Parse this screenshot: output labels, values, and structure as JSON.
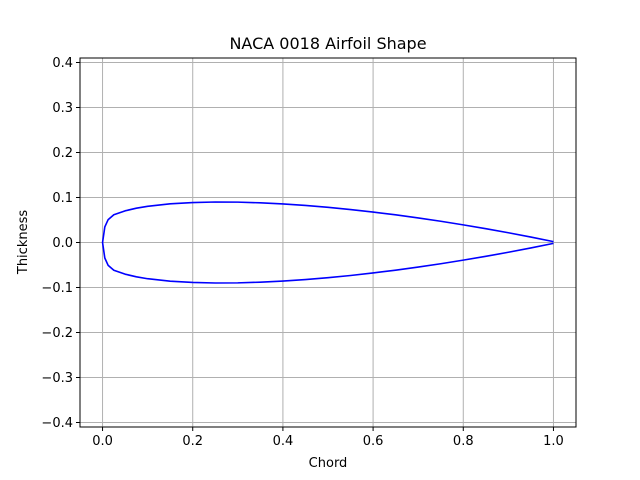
{
  "chart_data": {
    "type": "line",
    "title": "NACA 0018 Airfoil Shape",
    "xlabel": "Chord",
    "ylabel": "Thickness",
    "xlim": [
      -0.05,
      1.05
    ],
    "ylim": [
      -0.41,
      0.41
    ],
    "xticks": [
      0.0,
      0.2,
      0.4,
      0.6,
      0.8,
      1.0
    ],
    "xtick_labels": [
      "0.0",
      "0.2",
      "0.4",
      "0.6",
      "0.8",
      "1.0"
    ],
    "yticks": [
      -0.4,
      -0.3,
      -0.2,
      -0.1,
      0.0,
      0.1,
      0.2,
      0.3,
      0.4
    ],
    "ytick_labels": [
      "−0.4",
      "−0.3",
      "−0.2",
      "−0.1",
      "0.0",
      "0.1",
      "0.2",
      "0.3",
      "0.4"
    ],
    "grid": true,
    "line_color": "#0000ff",
    "series": [
      {
        "x": [
          1.0,
          0.95,
          0.9,
          0.85,
          0.8,
          0.75,
          0.7,
          0.65,
          0.6,
          0.55,
          0.5,
          0.45,
          0.4,
          0.35,
          0.3,
          0.25,
          0.2,
          0.15,
          0.1,
          0.075,
          0.05,
          0.025,
          0.0125,
          0.005,
          0.0,
          0.005,
          0.0125,
          0.025,
          0.05,
          0.075,
          0.1,
          0.15,
          0.2,
          0.25,
          0.3,
          0.35,
          0.4,
          0.45,
          0.5,
          0.55,
          0.6,
          0.65,
          0.7,
          0.75,
          0.8,
          0.85,
          0.9,
          0.95,
          1.0
        ],
        "y": [
          0.0019,
          0.0121,
          0.0217,
          0.0307,
          0.0392,
          0.0472,
          0.0546,
          0.0615,
          0.0677,
          0.0733,
          0.0782,
          0.0824,
          0.0857,
          0.0882,
          0.0897,
          0.09,
          0.0888,
          0.0859,
          0.0805,
          0.0763,
          0.0704,
          0.0617,
          0.0509,
          0.0345,
          0.0,
          -0.0345,
          -0.0509,
          -0.0617,
          -0.0704,
          -0.0763,
          -0.0805,
          -0.0859,
          -0.0888,
          -0.09,
          -0.0897,
          -0.0882,
          -0.0857,
          -0.0824,
          -0.0782,
          -0.0733,
          -0.0677,
          -0.0615,
          -0.0546,
          -0.0472,
          -0.0392,
          -0.0307,
          -0.0217,
          -0.0121,
          -0.0019
        ]
      }
    ]
  }
}
